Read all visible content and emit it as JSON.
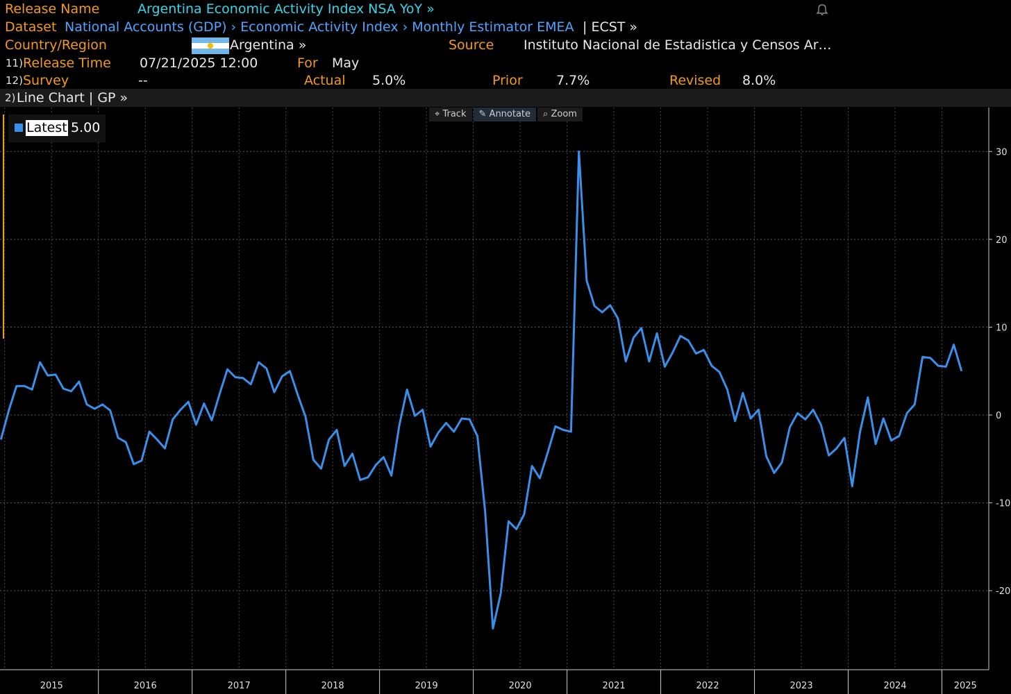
{
  "header": {
    "release_name_label": "Release Name",
    "release_name": "Argentina Economic Activity Index NSA YoY »",
    "dataset_label": "Dataset",
    "dataset_path": "National Accounts (GDP) › Economic Activity Index › Monthly Estimator EMEA",
    "dataset_code": "| ECST »",
    "country_label": "Country/Region",
    "country": "Argentina »",
    "source_label": "Source",
    "source": "Instituto Nacional de Estadistica y Censos Ar…",
    "release_time_num": "11)",
    "release_time_label": "Release Time",
    "release_time": "07/21/2025 12:00",
    "for_label": "For",
    "for_value": "May",
    "survey_num": "12)",
    "survey_label": "Survey",
    "survey_value": "--",
    "actual_label": "Actual",
    "actual_value": "5.0%",
    "prior_label": "Prior",
    "prior_value": "7.7%",
    "revised_label": "Revised",
    "revised_value": "8.0%"
  },
  "subbar": {
    "num": "2)",
    "label": "Line Chart | GP »"
  },
  "toolbar": {
    "track": "Track",
    "annotate": "Annotate",
    "zoom": "Zoom"
  },
  "legend": {
    "label": "Latest",
    "value": "5.00"
  },
  "colors": {
    "line": "#3a8fe8",
    "accent": "#f39a1c"
  },
  "chart_data": {
    "type": "line",
    "title": "Argentina Economic Activity Index NSA YoY",
    "x_start": 2014.96,
    "x_step": 0.08333,
    "values": [
      -2.8,
      0.5,
      3.3,
      3.3,
      2.9,
      6.0,
      4.5,
      4.6,
      3.0,
      2.7,
      3.8,
      1.2,
      0.7,
      1.2,
      0.5,
      -2.6,
      -3.1,
      -5.6,
      -5.2,
      -1.9,
      -2.8,
      -3.8,
      -0.5,
      0.6,
      1.5,
      -1.1,
      1.3,
      -0.6,
      2.4,
      5.2,
      4.3,
      4.2,
      3.5,
      6.0,
      5.3,
      2.6,
      4.4,
      5.0,
      2.3,
      -0.2,
      -5.1,
      -6.1,
      -2.8,
      -1.7,
      -5.8,
      -4.4,
      -7.4,
      -7.1,
      -5.7,
      -4.8,
      -6.9,
      -1.2,
      2.9,
      -0.1,
      0.6,
      -3.6,
      -2.0,
      -0.9,
      -1.9,
      -0.4,
      -0.5,
      -2.4,
      -11.0,
      -24.3,
      -20.3,
      -12.1,
      -13.0,
      -11.3,
      -5.8,
      -7.2,
      -4.3,
      -1.3,
      -1.7,
      -1.9,
      30.0,
      15.3,
      12.4,
      11.7,
      12.5,
      11.0,
      6.1,
      8.8,
      9.9,
      6.1,
      9.3,
      5.5,
      7.1,
      9.0,
      8.5,
      7.0,
      7.4,
      5.6,
      4.9,
      2.9,
      -0.7,
      2.5,
      -0.4,
      0.6,
      -4.7,
      -6.6,
      -5.4,
      -1.4,
      0.2,
      -0.5,
      0.6,
      -1.1,
      -4.6,
      -3.8,
      -2.6,
      -8.1,
      -1.9,
      2.0,
      -3.3,
      -0.4,
      -2.9,
      -2.4,
      0.2,
      1.2,
      6.6,
      6.5,
      5.6,
      5.5,
      8.0,
      5.0
    ],
    "y_ticks": [
      30,
      20,
      10,
      0,
      -10,
      -20
    ],
    "y_tick_labels": [
      "30",
      "20",
      "10",
      "0",
      "-10",
      "-20"
    ],
    "ylim": [
      -29,
      35
    ],
    "xlim": [
      2014.95,
      2025.5
    ],
    "x_ticks": [
      "2015",
      "2016",
      "2017",
      "2018",
      "2019",
      "2020",
      "2021",
      "2022",
      "2023",
      "2024",
      "2025"
    ],
    "year_boundaries": [
      2016,
      2017,
      2018,
      2019,
      2020,
      2021,
      2022,
      2023,
      2024,
      2025
    ],
    "grid": true,
    "legend": "top-left",
    "xlabel": "",
    "ylabel": ""
  }
}
